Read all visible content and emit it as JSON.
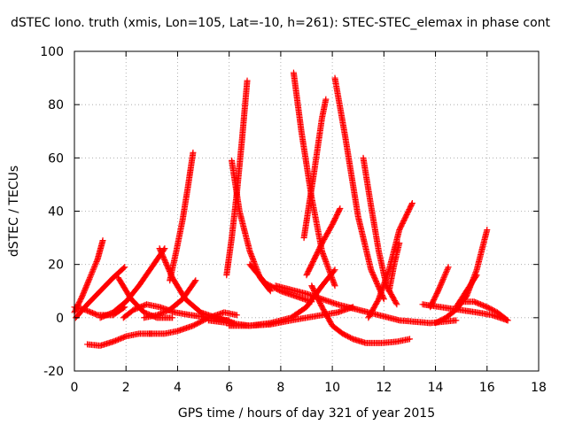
{
  "chart_data": {
    "type": "scatter",
    "title": "dSTEC Iono. truth (xmis, Lon=105, Lat=-10, h=261): STEC-STEC_elemax in phase cont",
    "xlabel": "GPS time / hours of day 321 of year 2015",
    "ylabel": "dSTEC  / TECUs",
    "xlim": [
      0,
      18
    ],
    "ylim": [
      -20,
      100
    ],
    "xticks": [
      "0",
      "2",
      "4",
      "6",
      "8",
      "10",
      "12",
      "14",
      "16",
      "18"
    ],
    "yticks": [
      "-20",
      "0",
      "20",
      "40",
      "60",
      "80",
      "100"
    ],
    "grid": true,
    "legend": "none",
    "marker": "plus",
    "color": "#ff0000",
    "series": [
      {
        "x": [
          0.0,
          0.3,
          0.6,
          0.9,
          1.1
        ],
        "y": [
          2,
          8,
          15,
          22,
          29
        ]
      },
      {
        "x": [
          0.0,
          0.4,
          0.9,
          1.5,
          1.95
        ],
        "y": [
          4,
          3,
          1,
          1,
          4
        ]
      },
      {
        "x": [
          0.05,
          0.5,
          1.0,
          1.5,
          1.95
        ],
        "y": [
          0,
          5,
          10,
          15,
          19
        ]
      },
      {
        "x": [
          1.7,
          2.2,
          2.7,
          3.2,
          3.8
        ],
        "y": [
          15,
          7,
          2,
          0,
          0
        ]
      },
      {
        "x": [
          1.9,
          2.3,
          2.8,
          3.3,
          3.9,
          4.5,
          5.2,
          6.0
        ],
        "y": [
          0,
          3,
          5,
          4,
          2,
          1,
          0,
          -1
        ]
      },
      {
        "x": [
          0.5,
          1.0,
          1.5,
          2.0,
          2.5,
          3.0
        ],
        "y": [
          -10,
          -10.5,
          -9,
          -7,
          -6,
          -6
        ]
      },
      {
        "x": [
          1.0,
          1.5,
          2.0,
          2.5,
          3.0,
          3.5
        ],
        "y": [
          0,
          2,
          6,
          12,
          19,
          26
        ]
      },
      {
        "x": [
          3.3,
          3.8,
          4.3,
          4.9,
          5.5,
          6.2
        ],
        "y": [
          26,
          15,
          7,
          2,
          0,
          -2
        ]
      },
      {
        "x": [
          2.9,
          3.5,
          4.0,
          4.6,
          5.2,
          5.8,
          6.3
        ],
        "y": [
          -6,
          -6,
          -5,
          -3,
          0,
          2,
          1
        ]
      },
      {
        "x": [
          2.7,
          3.2,
          3.7,
          4.2,
          4.7
        ],
        "y": [
          0,
          1,
          3,
          7,
          14
        ]
      },
      {
        "x": [
          3.7,
          3.95,
          4.2,
          4.4,
          4.6
        ],
        "y": [
          14,
          25,
          37,
          49,
          62
        ]
      },
      {
        "x": [
          6.1,
          6.4,
          6.8,
          7.2,
          7.6
        ],
        "y": [
          59,
          40,
          25,
          15,
          10
        ]
      },
      {
        "x": [
          5.9,
          6.1,
          6.3,
          6.5,
          6.7
        ],
        "y": [
          16,
          30,
          47,
          67,
          89
        ]
      },
      {
        "x": [
          6.8,
          7.4,
          8.0,
          8.6,
          9.2
        ],
        "y": [
          20,
          13,
          10,
          8,
          6
        ]
      },
      {
        "x": [
          5.2,
          6.0,
          6.8,
          7.6,
          8.4,
          9.0,
          9.6,
          10.1
        ],
        "y": [
          -1,
          -2,
          -3,
          -2,
          0,
          4,
          12,
          18
        ]
      },
      {
        "x": [
          8.5,
          8.8,
          9.2,
          9.6,
          10.1
        ],
        "y": [
          92,
          70,
          45,
          25,
          12
        ]
      },
      {
        "x": [
          8.9,
          9.3,
          9.6,
          9.75
        ],
        "y": [
          30,
          55,
          75,
          82
        ]
      },
      {
        "x": [
          10.1,
          10.5,
          11.0,
          11.5,
          12.0
        ],
        "y": [
          90,
          68,
          38,
          18,
          7
        ]
      },
      {
        "x": [
          9.0,
          9.3,
          9.6,
          10.0,
          10.3
        ],
        "y": [
          16,
          22,
          28,
          35,
          41
        ]
      },
      {
        "x": [
          6.0,
          6.8,
          7.6,
          8.4,
          9.0,
          9.6,
          10.2,
          10.8
        ],
        "y": [
          -3,
          -3,
          -2.5,
          -1,
          0,
          1,
          2,
          4
        ]
      },
      {
        "x": [
          9.2,
          9.6,
          10.0,
          10.4,
          10.8,
          11.3,
          11.9,
          12.5,
          13.0
        ],
        "y": [
          12,
          4,
          -3,
          -6,
          -8,
          -9.5,
          -9.5,
          -9,
          -8
        ]
      },
      {
        "x": [
          11.2,
          11.5,
          11.8,
          12.1,
          12.5
        ],
        "y": [
          60,
          42,
          25,
          12,
          5
        ]
      },
      {
        "x": [
          11.4,
          11.8,
          12.2,
          12.6,
          13.1
        ],
        "y": [
          0,
          7,
          18,
          33,
          43
        ]
      },
      {
        "x": [
          12.2,
          12.4,
          12.6
        ],
        "y": [
          10,
          20,
          28
        ]
      },
      {
        "x": [
          7.8,
          9.0,
          10.2,
          11.4,
          12.6,
          13.8,
          14.8
        ],
        "y": [
          12,
          9,
          5,
          2,
          -1,
          -2,
          -1
        ]
      },
      {
        "x": [
          13.8,
          14.1,
          14.5
        ],
        "y": [
          4,
          10,
          19
        ]
      },
      {
        "x": [
          13.5,
          14.2,
          14.9,
          15.6,
          16.2,
          16.8
        ],
        "y": [
          5,
          4,
          3,
          2,
          1,
          -1
        ]
      },
      {
        "x": [
          14.0,
          14.4,
          14.8,
          15.2,
          15.6,
          16.0
        ],
        "y": [
          -2,
          0,
          3,
          8,
          18,
          33
        ]
      },
      {
        "x": [
          15.0,
          15.5,
          16.0,
          16.4,
          16.8
        ],
        "y": [
          6,
          6,
          4,
          2,
          -1
        ]
      },
      {
        "x": [
          14.8,
          15.2,
          15.6
        ],
        "y": [
          4,
          10,
          16
        ]
      }
    ]
  }
}
